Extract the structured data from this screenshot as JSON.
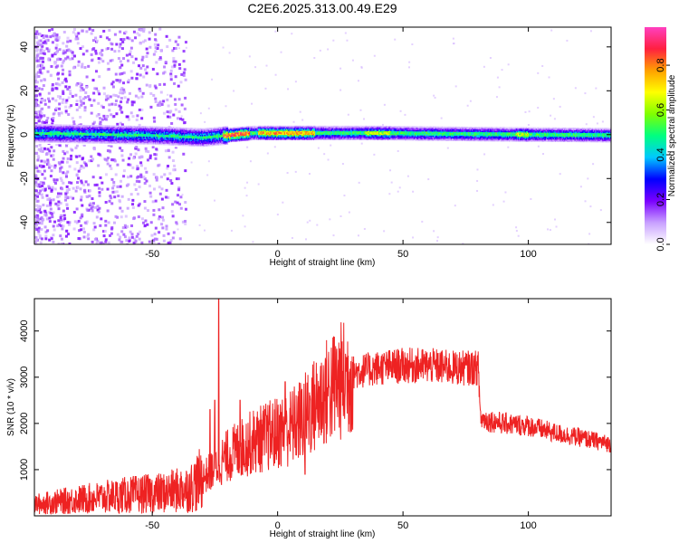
{
  "title": "C2E6.2025.313.00.49.E29",
  "chart_data": [
    {
      "type": "heatmap",
      "xlabel": "Height of straight line (km)",
      "ylabel": "Frequency (Hz)",
      "xlim": [
        -97,
        133
      ],
      "ylim": [
        -50,
        49
      ],
      "xticks": [
        -50,
        0,
        50,
        100
      ],
      "yticks": [
        -40,
        -20,
        0,
        20,
        40
      ],
      "xtick_labels": [
        "-50",
        "0",
        "50",
        "100"
      ],
      "ytick_labels": [
        "-40",
        "-20",
        "0",
        "20",
        "40"
      ],
      "colorbar": {
        "label": "Normalized spectral amplitude",
        "range": [
          0,
          0.97
        ],
        "ticks": [
          0.0,
          0.2,
          0.4,
          0.6,
          0.8
        ],
        "tick_labels": [
          "0.0",
          "0.2",
          "0.4",
          "0.6",
          "0.8"
        ],
        "colors": [
          "#ffffff",
          "#c8a0ff",
          "#7a00ff",
          "#0000ff",
          "#00c8ff",
          "#00ff80",
          "#80ff00",
          "#ffff00",
          "#ffa000",
          "#ff2040",
          "#ff40c0"
        ]
      },
      "band_center_hz": [
        {
          "x": -97,
          "y": 1
        },
        {
          "x": -50,
          "y": 0
        },
        {
          "x": -30,
          "y": -1
        },
        {
          "x": -20,
          "y": 0
        },
        {
          "x": -10,
          "y": 1
        },
        {
          "x": 40,
          "y": 1
        },
        {
          "x": 80,
          "y": 0.5
        },
        {
          "x": 133,
          "y": 0
        }
      ],
      "peak_segments": [
        {
          "x_start": -22,
          "x_end": -11,
          "peak": 0.95
        },
        {
          "x_start": -8,
          "x_end": 15,
          "peak": 0.85
        },
        {
          "x_start": 35,
          "x_end": 45,
          "peak": 0.7
        },
        {
          "x_start": 95,
          "x_end": 100,
          "peak": 0.7
        }
      ],
      "grid": false
    },
    {
      "type": "line",
      "xlabel": "Height of straight line (km)",
      "ylabel": "SNR (10 * v/v)",
      "xlim": [
        -97,
        133
      ],
      "ylim": [
        0,
        4700
      ],
      "xticks": [
        -50,
        0,
        50,
        100
      ],
      "yticks": [
        1000,
        2000,
        3000,
        4000
      ],
      "xtick_labels": [
        "-50",
        "0",
        "50",
        "100"
      ],
      "ytick_labels": [
        "1000",
        "2000",
        "3000",
        "4000"
      ],
      "series": [
        {
          "color": "#ee2222",
          "envelope": {
            "x": [
              -97,
              -80,
              -60,
              -45,
              -35,
              -28,
              -20,
              -10,
              0,
              5,
              10,
              20,
              30,
              40,
              50,
              60,
              70,
              80,
              81,
              90,
              100,
              110,
              120,
              133
            ],
            "y": [
              250,
              350,
              450,
              500,
              600,
              900,
              1300,
              1600,
              1800,
              1900,
              2100,
              2700,
              3100,
              3200,
              3250,
              3250,
              3200,
              3200,
              2100,
              2000,
              1950,
              1800,
              1700,
              1550
            ]
          },
          "spikes": [
            {
              "x": -23.5,
              "y": 4700
            },
            {
              "x": -25,
              "y": 2500
            },
            {
              "x": -27,
              "y": 2300
            },
            {
              "x": -15,
              "y": 2500
            },
            {
              "x": 3,
              "y": 2900
            },
            {
              "x": 11,
              "y": 900
            }
          ]
        }
      ],
      "grid": false
    }
  ]
}
